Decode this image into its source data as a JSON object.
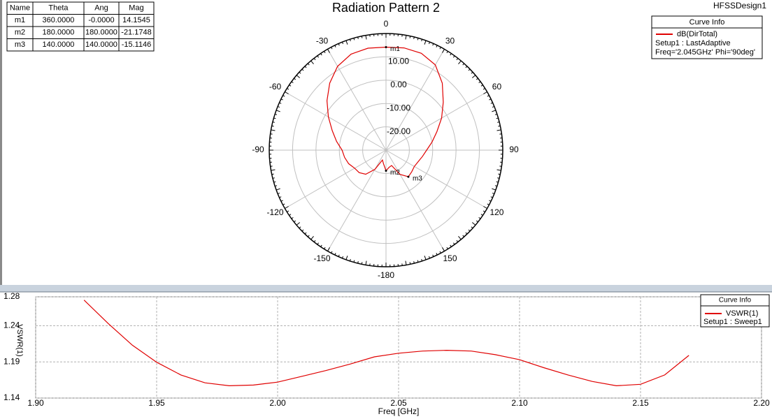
{
  "chart_data": [
    {
      "type": "polar",
      "title": "Radiation Pattern 2",
      "design": "HFSSDesign1",
      "table": {
        "columns": [
          "Name",
          "Theta",
          "Ang",
          "Mag"
        ]
      },
      "markers": [
        {
          "name": "m1",
          "theta": {
            "value": 360,
            "label": "360.0000"
          },
          "ang": {
            "value": 0,
            "label": "-0.0000"
          },
          "mag": 14.1545
        },
        {
          "name": "m2",
          "theta": {
            "value": 180,
            "label": "180.0000"
          },
          "ang": {
            "value": 180,
            "label": "180.0000"
          },
          "mag": -21.1748
        },
        {
          "name": "m3",
          "theta": {
            "value": 140,
            "label": "140.0000"
          },
          "ang": {
            "value": 140,
            "label": "140.0000"
          },
          "mag": -15.1146
        }
      ],
      "legend_title": "Curve Info",
      "series": [
        {
          "name": "dB(DirTotal)",
          "color": "#e00000",
          "setup": "Setup1 : LastAdaptive",
          "detail": "Freq='2.045GHz' Phi='90deg'",
          "theta": [
            0,
            10,
            20,
            30,
            40,
            50,
            60,
            70,
            80,
            90,
            100,
            110,
            120,
            130,
            140,
            150,
            160,
            170,
            180,
            190,
            200,
            210,
            220,
            230,
            240,
            250,
            260,
            270,
            280,
            290,
            300,
            310,
            320,
            330,
            340,
            350,
            360
          ],
          "values": [
            14.1545,
            14.5,
            14.2,
            12.2,
            7.5,
            2.0,
            -2.5,
            -6.8,
            -10.0,
            -12.6,
            -14.2,
            -15.4,
            -16.0,
            -15.6,
            -15.1146,
            -18.0,
            -23.0,
            -22.5,
            -21.1748,
            -24.0,
            -25.5,
            -20.5,
            -16.5,
            -15.0,
            -14.5,
            -13.0,
            -12.0,
            -11.2,
            -8.5,
            -5.5,
            -1.5,
            3.0,
            7.5,
            11.5,
            13.8,
            14.4,
            14.1545
          ]
        }
      ],
      "rlim": [
        -30,
        20
      ],
      "rticks": [
        {
          "value": 10,
          "label": "10.00"
        },
        {
          "value": 0,
          "label": "0.00"
        },
        {
          "value": -10,
          "label": "-10.00"
        },
        {
          "value": -20,
          "label": "-20.00"
        }
      ],
      "angle_ticks": [
        0,
        30,
        60,
        90,
        120,
        150,
        -180,
        -150,
        -120,
        -90,
        -60,
        -30
      ]
    },
    {
      "type": "line",
      "x_label": "Freq [GHz]",
      "y_label": "VSWR(1)",
      "legend_title": "Curve Info",
      "x": [
        1.92,
        1.93,
        1.94,
        1.95,
        1.96,
        1.97,
        1.98,
        1.99,
        2.0,
        2.01,
        2.02,
        2.03,
        2.04,
        2.05,
        2.06,
        2.07,
        2.08,
        2.09,
        2.1,
        2.11,
        2.12,
        2.13,
        2.14,
        2.15,
        2.16,
        2.17
      ],
      "series": [
        {
          "name": "VSWR(1)",
          "color": "#e00000",
          "setup": "Setup1 : Sweep1",
          "values": [
            1.2755,
            1.243,
            1.213,
            1.1895,
            1.172,
            1.161,
            1.157,
            1.158,
            1.162,
            1.17,
            1.178,
            1.187,
            1.197,
            1.202,
            1.205,
            1.206,
            1.205,
            1.2,
            1.193,
            1.182,
            1.172,
            1.163,
            1.157,
            1.159,
            1.172,
            1.199
          ]
        }
      ],
      "xlim": [
        1.9,
        2.2
      ],
      "xticks": [
        {
          "value": 1.9,
          "label": "1.90"
        },
        1.95,
        {
          "value": 2.0,
          "label": "2.00"
        },
        2.05,
        {
          "value": 2.1,
          "label": "2.10"
        },
        2.15,
        {
          "value": 2.2,
          "label": "2.20"
        }
      ],
      "ylim": [
        1.14,
        1.28
      ],
      "yticks": [
        1.14,
        1.19,
        1.24,
        1.28
      ],
      "grid": true
    }
  ]
}
